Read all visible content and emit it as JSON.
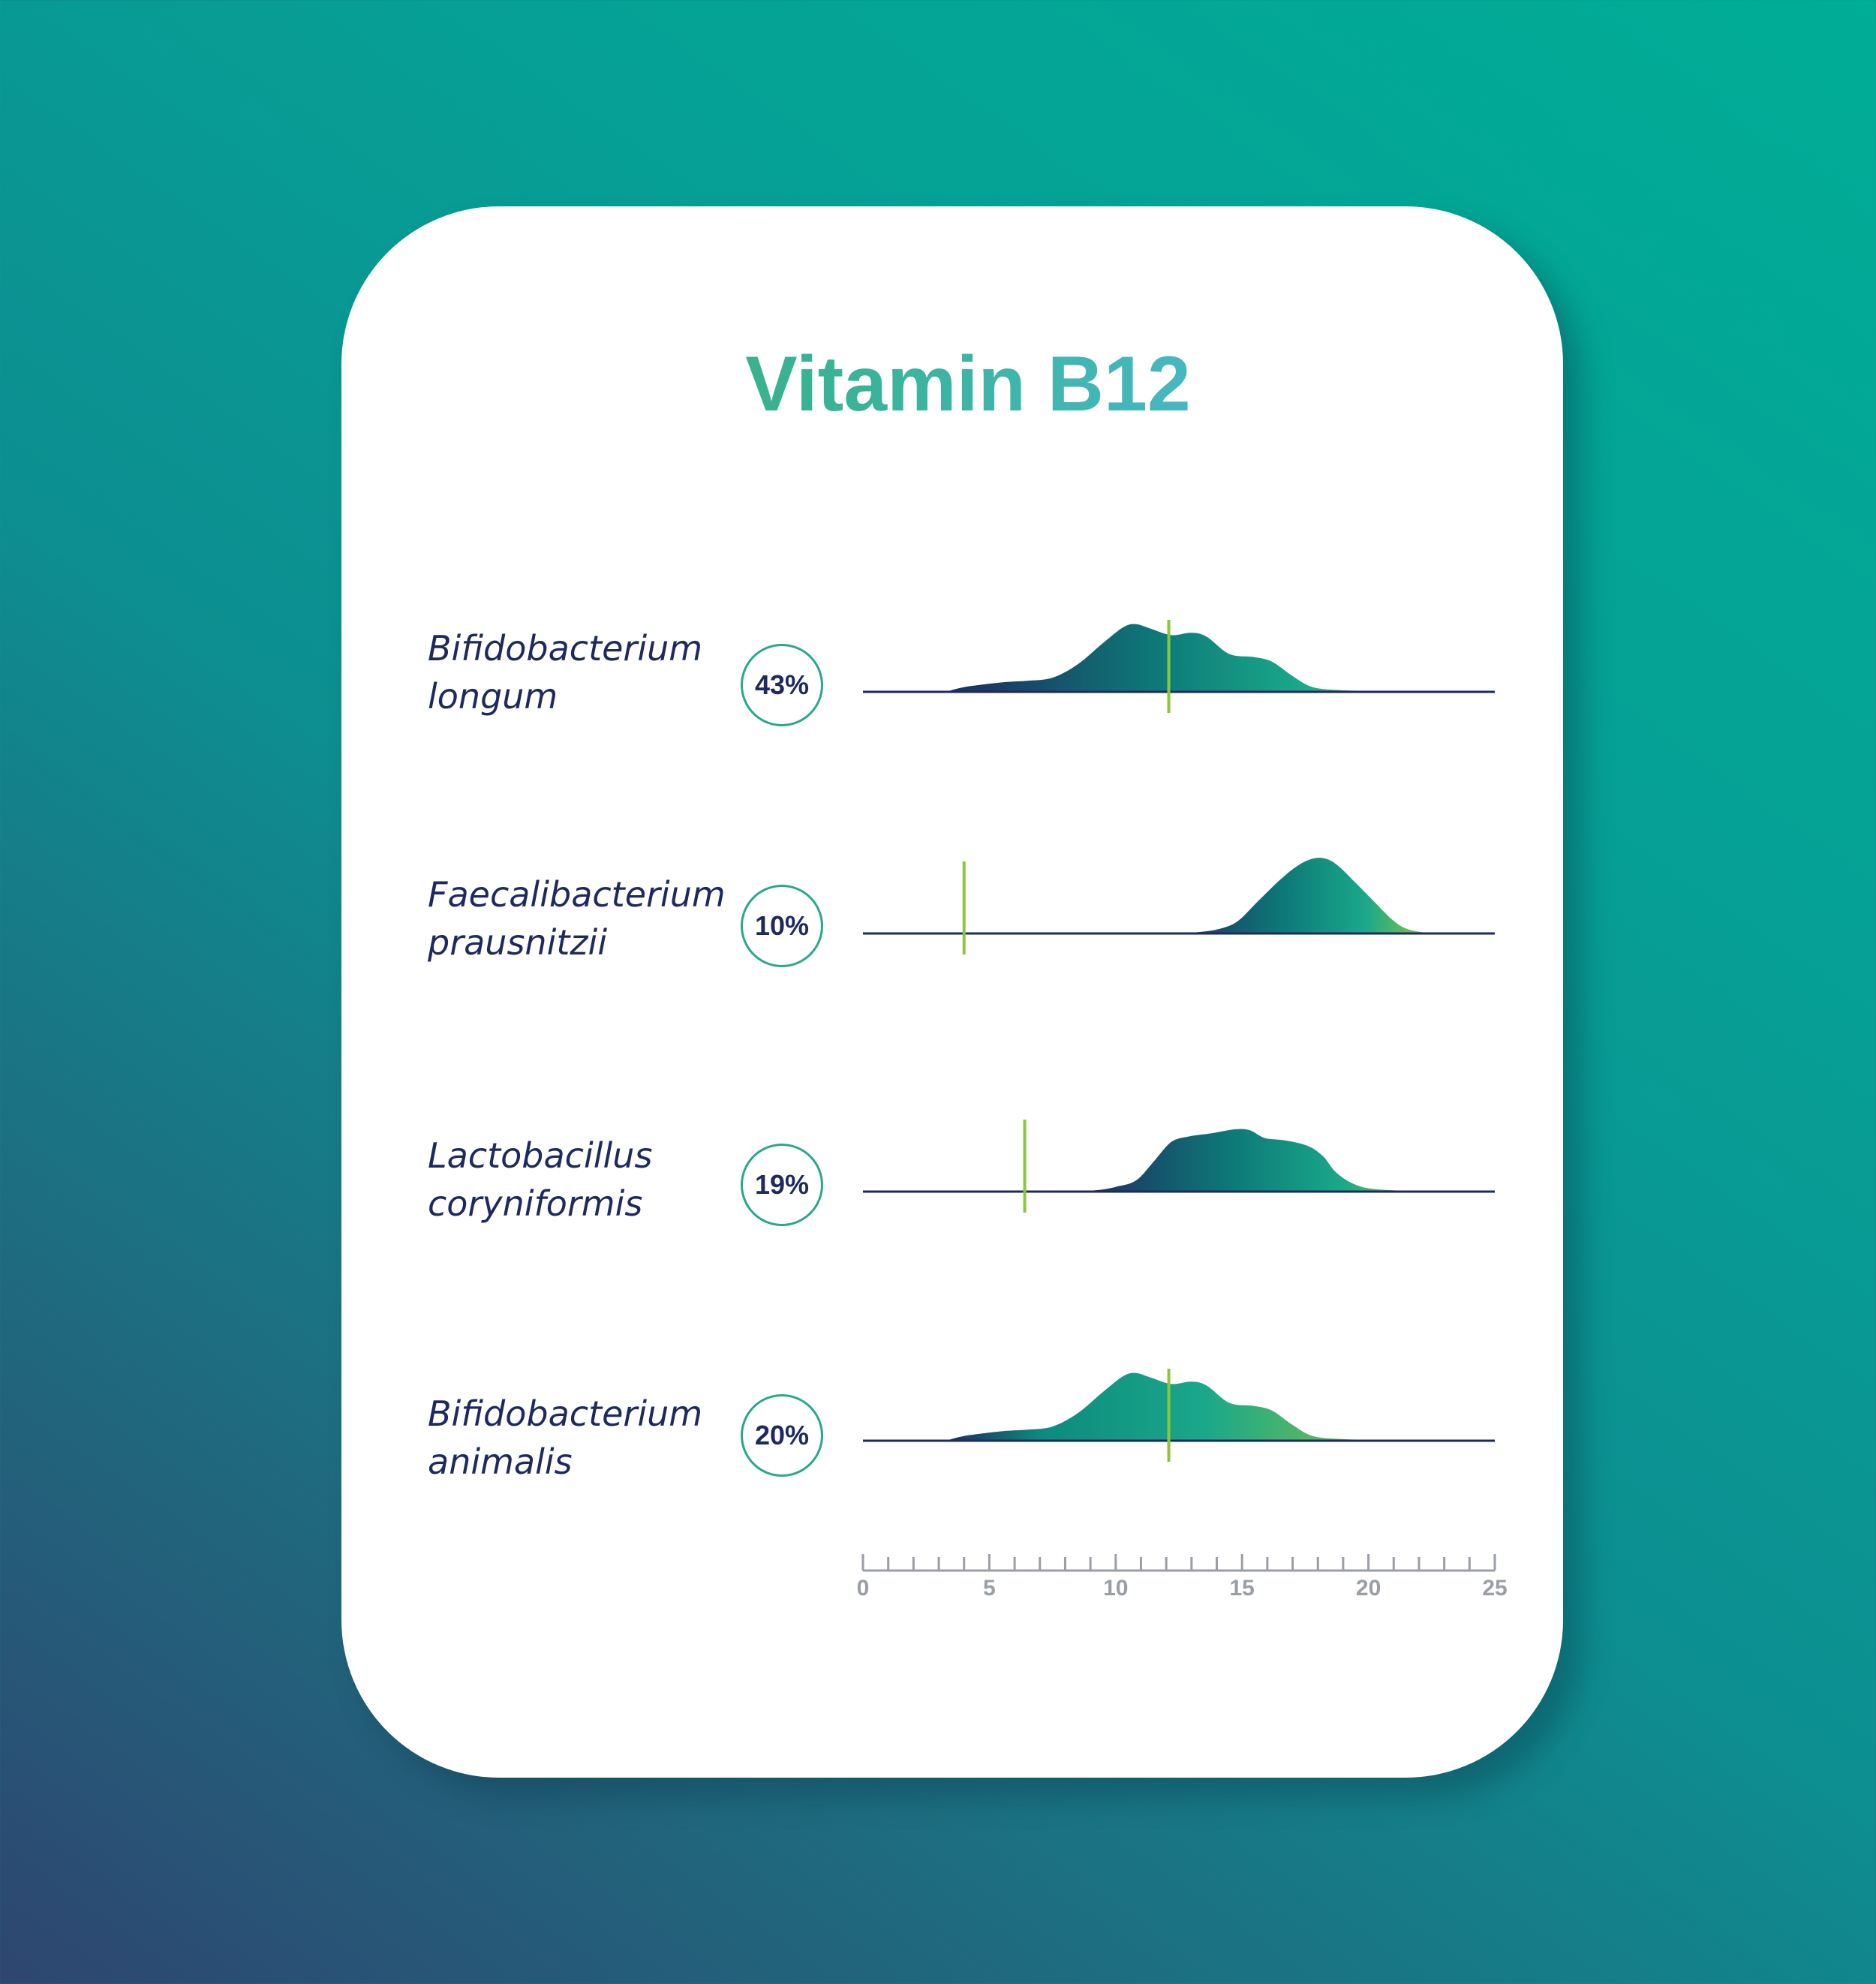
{
  "title": "Vitamin B12",
  "colors": {
    "background_start": "#2e4570",
    "background_end": "#00ad96",
    "text_dark": "#1e2a5e",
    "marker_line": "#8cc63f",
    "gradient": [
      "#1e2a5e",
      "#0d7a78",
      "#1aa88a",
      "#8cc63f"
    ]
  },
  "chart_data": {
    "type": "area",
    "title": "Vitamin B12",
    "x_axis": {
      "range": [
        0,
        25
      ],
      "ticks": [
        0,
        5,
        10,
        15,
        20,
        25
      ],
      "minor_step": 1
    },
    "series": [
      {
        "name_line1": "Bifidobacterium",
        "name_line2": "longum",
        "percent": "43%",
        "marker": 12.1,
        "points": [
          [
            3.3,
            0
          ],
          [
            4.0,
            0.06
          ],
          [
            5.5,
            0.12
          ],
          [
            6.5,
            0.14
          ],
          [
            7.5,
            0.18
          ],
          [
            8.5,
            0.35
          ],
          [
            9.5,
            0.62
          ],
          [
            10.3,
            0.82
          ],
          [
            10.8,
            0.86
          ],
          [
            11.4,
            0.8
          ],
          [
            12.2,
            0.72
          ],
          [
            13.0,
            0.75
          ],
          [
            13.6,
            0.7
          ],
          [
            14.5,
            0.48
          ],
          [
            15.5,
            0.44
          ],
          [
            16.2,
            0.38
          ],
          [
            17.0,
            0.2
          ],
          [
            17.8,
            0.06
          ],
          [
            19.0,
            0.02
          ],
          [
            20.5,
            0.01
          ],
          [
            22.0,
            0
          ]
        ]
      },
      {
        "name_line1": "Faecalibacterium",
        "name_line2": "prausnitzii",
        "percent": "10%",
        "marker": 4.0,
        "points": [
          [
            12.0,
            0
          ],
          [
            13.0,
            0.01
          ],
          [
            14.0,
            0.05
          ],
          [
            14.8,
            0.15
          ],
          [
            15.6,
            0.4
          ],
          [
            16.5,
            0.68
          ],
          [
            17.2,
            0.86
          ],
          [
            17.8,
            0.95
          ],
          [
            18.3,
            0.95
          ],
          [
            18.8,
            0.86
          ],
          [
            19.5,
            0.64
          ],
          [
            20.3,
            0.38
          ],
          [
            21.0,
            0.16
          ],
          [
            21.6,
            0.05
          ],
          [
            22.5,
            0
          ]
        ]
      },
      {
        "name_line1": "Lactobacillus",
        "name_line2": "coryniformis",
        "percent": "19%",
        "marker": 6.4,
        "points": [
          [
            8.3,
            0
          ],
          [
            9.3,
            0.02
          ],
          [
            10.0,
            0.06
          ],
          [
            10.8,
            0.14
          ],
          [
            11.5,
            0.38
          ],
          [
            12.2,
            0.63
          ],
          [
            12.9,
            0.7
          ],
          [
            13.8,
            0.74
          ],
          [
            14.7,
            0.79
          ],
          [
            15.3,
            0.78
          ],
          [
            15.9,
            0.68
          ],
          [
            16.7,
            0.65
          ],
          [
            17.6,
            0.58
          ],
          [
            18.2,
            0.45
          ],
          [
            18.7,
            0.25
          ],
          [
            19.4,
            0.1
          ],
          [
            20.3,
            0.03
          ],
          [
            22.5,
            0
          ]
        ]
      },
      {
        "name_line1": "Bifidobacterium",
        "name_line2": "animalis",
        "percent": "20%",
        "marker": 12.1,
        "points": [
          [
            3.3,
            0
          ],
          [
            4.0,
            0.06
          ],
          [
            5.5,
            0.12
          ],
          [
            6.5,
            0.14
          ],
          [
            7.5,
            0.18
          ],
          [
            8.5,
            0.35
          ],
          [
            9.5,
            0.62
          ],
          [
            10.3,
            0.82
          ],
          [
            10.8,
            0.86
          ],
          [
            11.4,
            0.8
          ],
          [
            12.2,
            0.72
          ],
          [
            13.0,
            0.75
          ],
          [
            13.6,
            0.7
          ],
          [
            14.5,
            0.48
          ],
          [
            15.5,
            0.44
          ],
          [
            16.2,
            0.38
          ],
          [
            17.0,
            0.2
          ],
          [
            17.8,
            0.06
          ],
          [
            19.0,
            0.02
          ],
          [
            20.5,
            0.01
          ],
          [
            22.0,
            0
          ]
        ]
      }
    ]
  }
}
